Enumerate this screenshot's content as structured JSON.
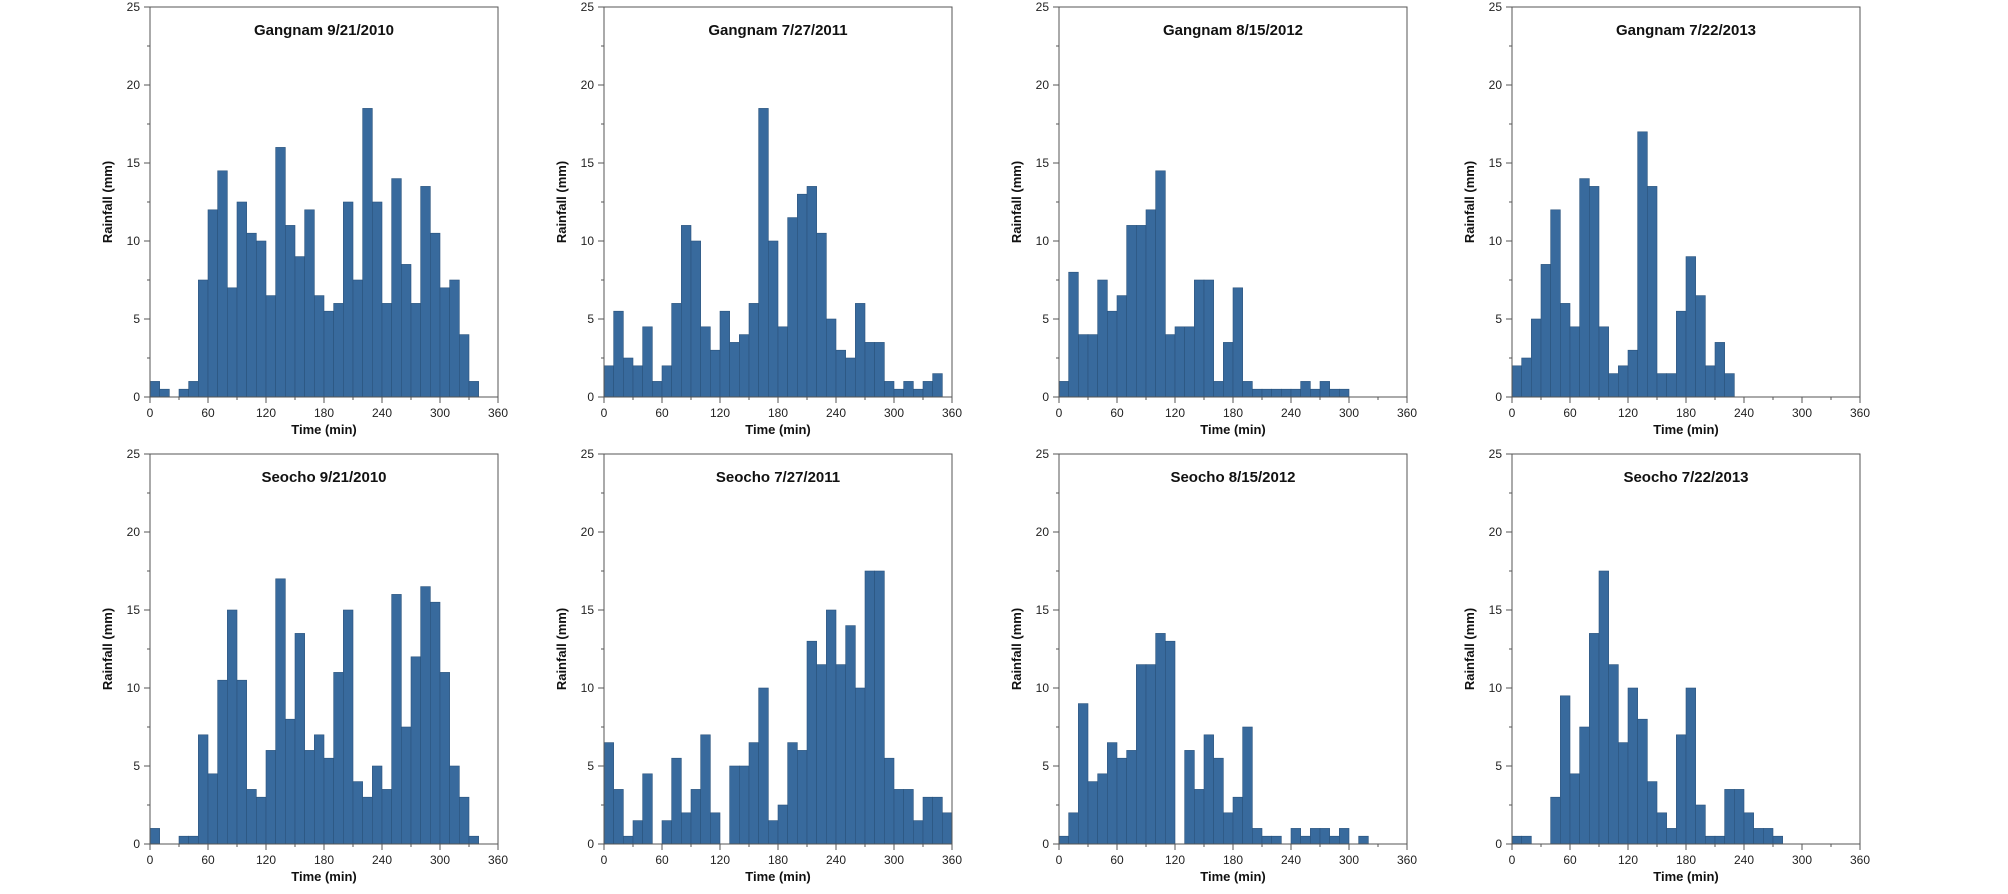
{
  "figure": {
    "rows": 2,
    "cols": 4,
    "bar_color": "#386a9d",
    "bar_edge_color": "#2a537c"
  },
  "chart_data": [
    {
      "type": "bar",
      "title": "Gangnam 9/21/2010",
      "xlabel": "Time (min)",
      "ylabel": "Rainfall (mm)",
      "xlim": [
        0,
        360
      ],
      "ylim": [
        0,
        25
      ],
      "bin_width": 10,
      "xticks": [
        0,
        60,
        120,
        180,
        240,
        300,
        360
      ],
      "yticks": [
        0,
        5,
        10,
        15,
        20,
        25
      ],
      "x": [
        0,
        10,
        20,
        30,
        40,
        50,
        60,
        70,
        80,
        90,
        100,
        110,
        120,
        130,
        140,
        150,
        160,
        170,
        180,
        190,
        200,
        210,
        220,
        230,
        240,
        250,
        260,
        270,
        280,
        290,
        300,
        310,
        320,
        330,
        340,
        350
      ],
      "values": [
        1,
        0.5,
        0,
        0.5,
        1,
        7.5,
        12,
        14.5,
        7,
        12.5,
        10.5,
        10,
        6.5,
        16,
        11,
        9,
        12,
        6.5,
        5.5,
        6,
        12.5,
        7.5,
        18.5,
        12.5,
        6,
        14,
        8.5,
        6,
        13.5,
        10.5,
        7,
        7.5,
        4,
        1,
        0,
        0
      ]
    },
    {
      "type": "bar",
      "title": "Gangnam 7/27/2011",
      "xlabel": "Time (min)",
      "ylabel": "Rainfall (mm)",
      "xlim": [
        0,
        360
      ],
      "ylim": [
        0,
        25
      ],
      "bin_width": 10,
      "xticks": [
        0,
        60,
        120,
        180,
        240,
        300,
        360
      ],
      "yticks": [
        0,
        5,
        10,
        15,
        20,
        25
      ],
      "x": [
        0,
        10,
        20,
        30,
        40,
        50,
        60,
        70,
        80,
        90,
        100,
        110,
        120,
        130,
        140,
        150,
        160,
        170,
        180,
        190,
        200,
        210,
        220,
        230,
        240,
        250,
        260,
        270,
        280,
        290,
        300,
        310,
        320,
        330,
        340,
        350
      ],
      "values": [
        2,
        5.5,
        2.5,
        2,
        4.5,
        1,
        2,
        6,
        11,
        10,
        4.5,
        3,
        5.5,
        3.5,
        4,
        6,
        18.5,
        10,
        4.5,
        11.5,
        13,
        13.5,
        10.5,
        5,
        3,
        2.5,
        6,
        3.5,
        3.5,
        1,
        0.5,
        1,
        0.5,
        1,
        1.5,
        0
      ]
    },
    {
      "type": "bar",
      "title": "Gangnam 8/15/2012",
      "xlabel": "Time (min)",
      "ylabel": "Rainfall (mm)",
      "xlim": [
        0,
        360
      ],
      "ylim": [
        0,
        25
      ],
      "bin_width": 10,
      "xticks": [
        0,
        60,
        120,
        180,
        240,
        300,
        360
      ],
      "yticks": [
        0,
        5,
        10,
        15,
        20,
        25
      ],
      "x": [
        0,
        10,
        20,
        30,
        40,
        50,
        60,
        70,
        80,
        90,
        100,
        110,
        120,
        130,
        140,
        150,
        160,
        170,
        180,
        190,
        200,
        210,
        220,
        230,
        240,
        250,
        260,
        270,
        280,
        290,
        300,
        310,
        320,
        330,
        340,
        350
      ],
      "values": [
        1,
        8,
        4,
        4,
        7.5,
        5.5,
        6.5,
        11,
        11,
        12,
        14.5,
        4,
        4.5,
        4.5,
        7.5,
        7.5,
        1,
        3.5,
        7,
        1,
        0.5,
        0.5,
        0.5,
        0.5,
        0.5,
        1,
        0.5,
        1,
        0.5,
        0.5,
        0,
        0,
        0,
        0,
        0,
        0
      ]
    },
    {
      "type": "bar",
      "title": "Gangnam 7/22/2013",
      "xlabel": "Time (min)",
      "ylabel": "Rainfall (mm)",
      "xlim": [
        0,
        360
      ],
      "ylim": [
        0,
        25
      ],
      "bin_width": 10,
      "xticks": [
        0,
        60,
        120,
        180,
        240,
        300,
        360
      ],
      "yticks": [
        0,
        5,
        10,
        15,
        20,
        25
      ],
      "x": [
        0,
        10,
        20,
        30,
        40,
        50,
        60,
        70,
        80,
        90,
        100,
        110,
        120,
        130,
        140,
        150,
        160,
        170,
        180,
        190,
        200,
        210,
        220,
        230,
        240,
        250,
        260,
        270,
        280,
        290,
        300,
        310,
        320,
        330,
        340,
        350
      ],
      "values": [
        2,
        2.5,
        5,
        8.5,
        12,
        6,
        4.5,
        14,
        13.5,
        4.5,
        1.5,
        2,
        3,
        17,
        13.5,
        1.5,
        1.5,
        5.5,
        9,
        6.5,
        2,
        3.5,
        1.5,
        0,
        0,
        0,
        0,
        0,
        0,
        0,
        0,
        0,
        0,
        0,
        0,
        0
      ]
    },
    {
      "type": "bar",
      "title": "Seocho 9/21/2010",
      "xlabel": "Time (min)",
      "ylabel": "Rainfall (mm)",
      "xlim": [
        0,
        360
      ],
      "ylim": [
        0,
        25
      ],
      "bin_width": 10,
      "xticks": [
        0,
        60,
        120,
        180,
        240,
        300,
        360
      ],
      "yticks": [
        0,
        5,
        10,
        15,
        20,
        25
      ],
      "x": [
        0,
        10,
        20,
        30,
        40,
        50,
        60,
        70,
        80,
        90,
        100,
        110,
        120,
        130,
        140,
        150,
        160,
        170,
        180,
        190,
        200,
        210,
        220,
        230,
        240,
        250,
        260,
        270,
        280,
        290,
        300,
        310,
        320,
        330,
        340,
        350
      ],
      "values": [
        1,
        0,
        0,
        0.5,
        0.5,
        7,
        4.5,
        10.5,
        15,
        10.5,
        3.5,
        3,
        6,
        17,
        8,
        13.5,
        6,
        7,
        5.5,
        11,
        15,
        4,
        3,
        5,
        3.5,
        16,
        7.5,
        12,
        16.5,
        15.5,
        11,
        5,
        3,
        0.5,
        0,
        0
      ]
    },
    {
      "type": "bar",
      "title": "Seocho 7/27/2011",
      "xlabel": "Time (min)",
      "ylabel": "Rainfall (mm)",
      "xlim": [
        0,
        360
      ],
      "ylim": [
        0,
        25
      ],
      "bin_width": 10,
      "xticks": [
        0,
        60,
        120,
        180,
        240,
        300,
        360
      ],
      "yticks": [
        0,
        5,
        10,
        15,
        20,
        25
      ],
      "x": [
        0,
        10,
        20,
        30,
        40,
        50,
        60,
        70,
        80,
        90,
        100,
        110,
        120,
        130,
        140,
        150,
        160,
        170,
        180,
        190,
        200,
        210,
        220,
        230,
        240,
        250,
        260,
        270,
        280,
        290,
        300,
        310,
        320,
        330,
        340,
        350
      ],
      "values": [
        6.5,
        3.5,
        0.5,
        1.5,
        4.5,
        0,
        1.5,
        5.5,
        2,
        3.5,
        7,
        2,
        0,
        5,
        5,
        6.5,
        10,
        1.5,
        2.5,
        6.5,
        6,
        13,
        11.5,
        15,
        11.5,
        14,
        10,
        17.5,
        17.5,
        5.5,
        3.5,
        3.5,
        1.5,
        3,
        3,
        2
      ]
    },
    {
      "type": "bar",
      "title": "Seocho 8/15/2012",
      "xlabel": "Time (min)",
      "ylabel": "Rainfall (mm)",
      "xlim": [
        0,
        360
      ],
      "ylim": [
        0,
        25
      ],
      "bin_width": 10,
      "xticks": [
        0,
        60,
        120,
        180,
        240,
        300,
        360
      ],
      "yticks": [
        0,
        5,
        10,
        15,
        20,
        25
      ],
      "x": [
        0,
        10,
        20,
        30,
        40,
        50,
        60,
        70,
        80,
        90,
        100,
        110,
        120,
        130,
        140,
        150,
        160,
        170,
        180,
        190,
        200,
        210,
        220,
        230,
        240,
        250,
        260,
        270,
        280,
        290,
        300,
        310,
        320,
        330,
        340,
        350
      ],
      "values": [
        0.5,
        2,
        9,
        4,
        4.5,
        6.5,
        5.5,
        6,
        11.5,
        11.5,
        13.5,
        13,
        0,
        6,
        3.5,
        7,
        5.5,
        2,
        3,
        7.5,
        1,
        0.5,
        0.5,
        0,
        1,
        0.5,
        1,
        1,
        0.5,
        1,
        0,
        0.5,
        0,
        0,
        0,
        0
      ]
    },
    {
      "type": "bar",
      "title": "Seocho 7/22/2013",
      "xlabel": "Time (min)",
      "ylabel": "Rainfall (mm)",
      "xlim": [
        0,
        360
      ],
      "ylim": [
        0,
        25
      ],
      "bin_width": 10,
      "xticks": [
        0,
        60,
        120,
        180,
        240,
        300,
        360
      ],
      "yticks": [
        0,
        5,
        10,
        15,
        20,
        25
      ],
      "x": [
        0,
        10,
        20,
        30,
        40,
        50,
        60,
        70,
        80,
        90,
        100,
        110,
        120,
        130,
        140,
        150,
        160,
        170,
        180,
        190,
        200,
        210,
        220,
        230,
        240,
        250,
        260,
        270,
        280,
        290,
        300,
        310,
        320,
        330,
        340,
        350
      ],
      "values": [
        0.5,
        0.5,
        0,
        0,
        3,
        9.5,
        4.5,
        7.5,
        13.5,
        17.5,
        11.5,
        6.5,
        10,
        8,
        4,
        2,
        1,
        7,
        10,
        2.5,
        0.5,
        0.5,
        3.5,
        3.5,
        2,
        1,
        1,
        0.5,
        0,
        0,
        0,
        0,
        0,
        0,
        0,
        0
      ]
    }
  ]
}
